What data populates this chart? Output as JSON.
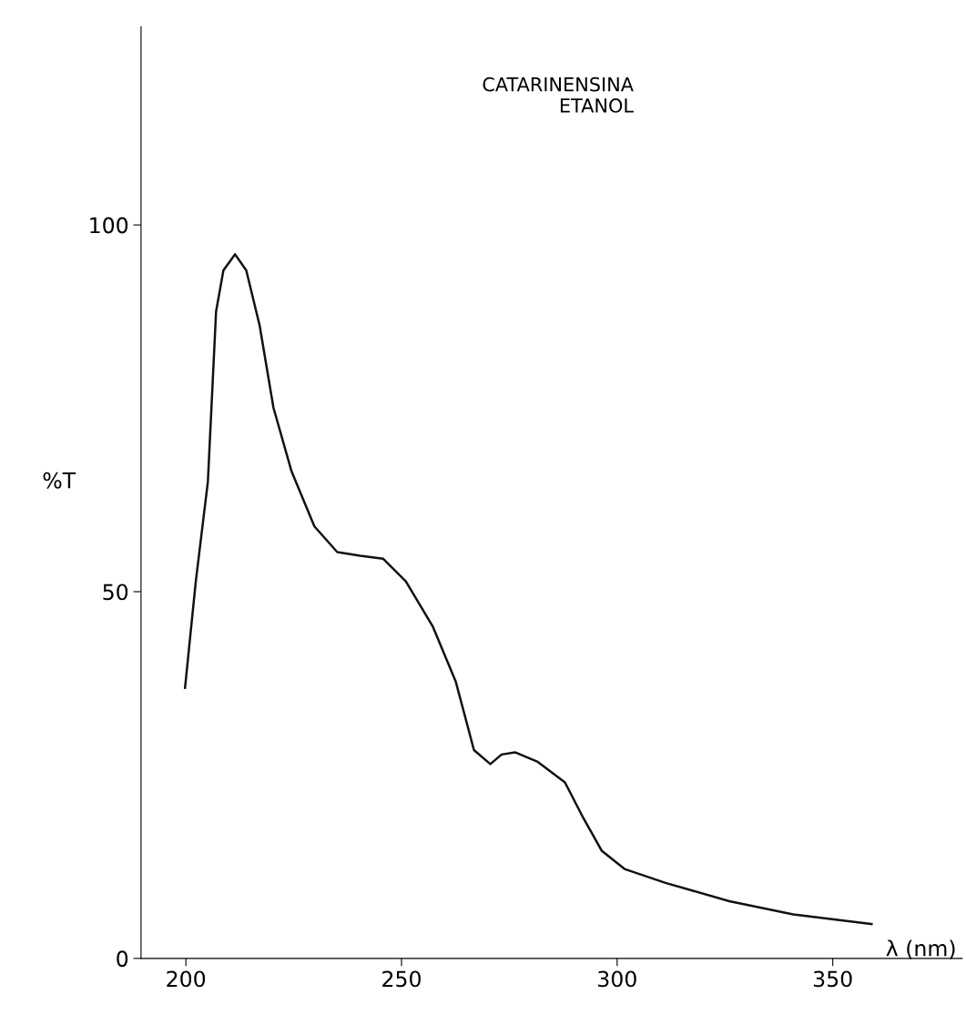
{
  "chart_data": {
    "type": "line",
    "title": "CATARINENSINA\nETANOL",
    "xlabel": "λ (nm)",
    "ylabel": "%T",
    "x": [
      199.8,
      202.3,
      205.1,
      207,
      208.7,
      211.4,
      214,
      217.1,
      220.3,
      224.5,
      229.8,
      235.1,
      240.4,
      245.7,
      251,
      257.3,
      262.6,
      266.8,
      270.6,
      273.2,
      276.3,
      281.6,
      287.9,
      292.2,
      296.4,
      301.7,
      311.2,
      326,
      340.8,
      359
    ],
    "series": [
      {
        "color": "#111111",
        "values": [
          36.9,
          51.4,
          65,
          88.2,
          93.8,
          96,
          93.8,
          86.3,
          75.1,
          66.4,
          58.9,
          55.4,
          54.9,
          54.5,
          51.4,
          45.2,
          37.7,
          28.4,
          26.5,
          27.8,
          28.1,
          26.8,
          24,
          19.1,
          14.7,
          12.2,
          10.3,
          7.8,
          6,
          4.7
        ]
      }
    ],
    "xlim": [
      189.6,
      380
    ],
    "ylim": [
      0,
      127
    ],
    "xticks": [
      200,
      250,
      300,
      350
    ],
    "yticks": [
      0,
      50,
      100
    ],
    "grid": false,
    "legend": false,
    "marker": "none",
    "line_style": "solid"
  }
}
